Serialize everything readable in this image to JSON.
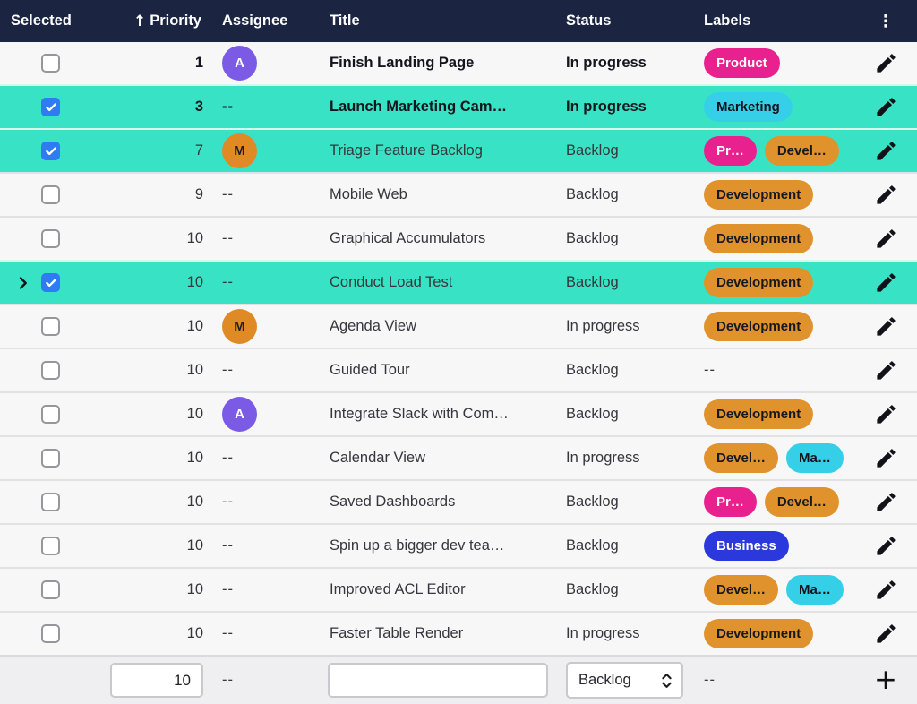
{
  "header": {
    "selected": "Selected",
    "priority": "Priority",
    "assignee": "Assignee",
    "title": "Title",
    "status": "Status",
    "labels": "Labels",
    "sort_icon": "↑",
    "menu_icon": "⋮"
  },
  "colors": {
    "header_bg": "#1B2441",
    "selected_row_bg": "#38E3C5",
    "row_bg": "#F7F7F8",
    "footer_bg": "#EFEFF1",
    "checkbox_blue": "#2E7BF2",
    "pill_pink": "#E8218F",
    "pill_orange": "#E0922D",
    "pill_cyan": "#35D0E8",
    "pill_blue": "#2B38DC",
    "avatar_purple": "#7B5BE6",
    "avatar_orange": "#E08A25"
  },
  "rows": [
    {
      "selected": false,
      "chevron": false,
      "bold": true,
      "highlighted": false,
      "priority": "1",
      "assignee": {
        "initial": "A",
        "color": "avatar_purple",
        "text_color": "#FFFFFF"
      },
      "title": "Finish Landing Page",
      "status": "In progress",
      "labels": [
        {
          "text": "Product",
          "color": "pill_pink",
          "text_color": "#FFFFFF"
        }
      ]
    },
    {
      "selected": true,
      "chevron": false,
      "bold": true,
      "highlighted": true,
      "priority": "3",
      "assignee": "--",
      "title": "Launch Marketing Cam…",
      "status": "In progress",
      "labels": [
        {
          "text": "Marketing",
          "color": "pill_cyan",
          "text_color": "#10121E"
        }
      ]
    },
    {
      "selected": true,
      "chevron": false,
      "bold": false,
      "highlighted": true,
      "priority": "7",
      "assignee": {
        "initial": "M",
        "color": "avatar_orange",
        "text_color": "#1E1E28"
      },
      "title": "Triage Feature Backlog",
      "status": "Backlog",
      "labels": [
        {
          "text": "Pr…",
          "color": "pill_pink",
          "text_color": "#FFFFFF"
        },
        {
          "text": "Devel…",
          "color": "pill_orange",
          "text_color": "#17171F"
        }
      ]
    },
    {
      "selected": false,
      "chevron": false,
      "bold": false,
      "highlighted": false,
      "priority": "9",
      "assignee": "--",
      "title": "Mobile Web",
      "status": "Backlog",
      "labels": [
        {
          "text": "Development",
          "color": "pill_orange",
          "text_color": "#17171F"
        }
      ]
    },
    {
      "selected": false,
      "chevron": false,
      "bold": false,
      "highlighted": false,
      "priority": "10",
      "assignee": "--",
      "title": "Graphical Accumulators",
      "status": "Backlog",
      "labels": [
        {
          "text": "Development",
          "color": "pill_orange",
          "text_color": "#17171F"
        }
      ]
    },
    {
      "selected": true,
      "chevron": true,
      "bold": false,
      "highlighted": true,
      "priority": "10",
      "assignee": "--",
      "title": "Conduct Load Test",
      "status": "Backlog",
      "labels": [
        {
          "text": "Development",
          "color": "pill_orange",
          "text_color": "#17171F"
        }
      ]
    },
    {
      "selected": false,
      "chevron": false,
      "bold": false,
      "highlighted": false,
      "priority": "10",
      "assignee": {
        "initial": "M",
        "color": "avatar_orange",
        "text_color": "#1E1E28"
      },
      "title": "Agenda View",
      "status": "In progress",
      "labels": [
        {
          "text": "Development",
          "color": "pill_orange",
          "text_color": "#17171F"
        }
      ]
    },
    {
      "selected": false,
      "chevron": false,
      "bold": false,
      "highlighted": false,
      "priority": "10",
      "assignee": "--",
      "title": "Guided Tour",
      "status": "Backlog",
      "labels": "--"
    },
    {
      "selected": false,
      "chevron": false,
      "bold": false,
      "highlighted": false,
      "priority": "10",
      "assignee": {
        "initial": "A",
        "color": "avatar_purple",
        "text_color": "#FFFFFF"
      },
      "title": "Integrate Slack with Com…",
      "status": "Backlog",
      "labels": [
        {
          "text": "Development",
          "color": "pill_orange",
          "text_color": "#17171F"
        }
      ]
    },
    {
      "selected": false,
      "chevron": false,
      "bold": false,
      "highlighted": false,
      "priority": "10",
      "assignee": "--",
      "title": "Calendar View",
      "status": "In progress",
      "labels": [
        {
          "text": "Devel…",
          "color": "pill_orange",
          "text_color": "#17171F"
        },
        {
          "text": "Ma…",
          "color": "pill_cyan",
          "text_color": "#10121E"
        }
      ]
    },
    {
      "selected": false,
      "chevron": false,
      "bold": false,
      "highlighted": false,
      "priority": "10",
      "assignee": "--",
      "title": "Saved Dashboards",
      "status": "Backlog",
      "labels": [
        {
          "text": "Pr…",
          "color": "pill_pink",
          "text_color": "#FFFFFF"
        },
        {
          "text": "Devel…",
          "color": "pill_orange",
          "text_color": "#17171F"
        }
      ]
    },
    {
      "selected": false,
      "chevron": false,
      "bold": false,
      "highlighted": false,
      "priority": "10",
      "assignee": "--",
      "title": "Spin up a bigger dev tea…",
      "status": "Backlog",
      "labels": [
        {
          "text": "Business",
          "color": "pill_blue",
          "text_color": "#FFFFFF"
        }
      ]
    },
    {
      "selected": false,
      "chevron": false,
      "bold": false,
      "highlighted": false,
      "priority": "10",
      "assignee": "--",
      "title": "Improved ACL Editor",
      "status": "Backlog",
      "labels": [
        {
          "text": "Devel…",
          "color": "pill_orange",
          "text_color": "#17171F"
        },
        {
          "text": "Ma…",
          "color": "pill_cyan",
          "text_color": "#10121E"
        }
      ]
    },
    {
      "selected": false,
      "chevron": false,
      "bold": false,
      "highlighted": false,
      "priority": "10",
      "assignee": "--",
      "title": "Faster Table Render",
      "status": "In progress",
      "labels": [
        {
          "text": "Development",
          "color": "pill_orange",
          "text_color": "#17171F"
        }
      ]
    }
  ],
  "footer": {
    "priority_value": "10",
    "assignee_placeholder": "--",
    "title_value": "",
    "status_value": "Backlog",
    "labels_placeholder": "--",
    "add_icon": "+"
  }
}
